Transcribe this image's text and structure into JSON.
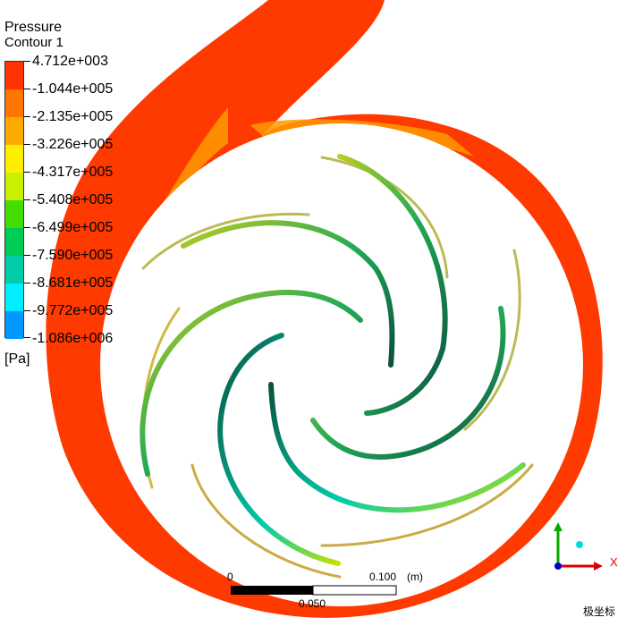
{
  "legend": {
    "title": "Pressure",
    "subtitle": "Contour 1",
    "units": "[Pa]",
    "levels": [
      "4.712e+003",
      "-1.044e+005",
      "-2.135e+005",
      "-3.226e+005",
      "-4.317e+005",
      "-5.408e+005",
      "-6.499e+005",
      "-7.590e+005",
      "-8.681e+005",
      "-9.772e+005",
      "-1.086e+006"
    ],
    "colors": [
      "#ff3300",
      "#ff7700",
      "#ffaa00",
      "#ffee00",
      "#c8f000",
      "#44dd00",
      "#00cc55",
      "#00ccaa",
      "#00eeff",
      "#0099ff",
      "#0044ee"
    ]
  },
  "scale_bar": {
    "label_start": "0",
    "label_end": "0.100",
    "unit": "(m)",
    "label_mid": "0.050"
  },
  "axes": {
    "x_label": "X"
  },
  "watermark": "极坐标"
}
